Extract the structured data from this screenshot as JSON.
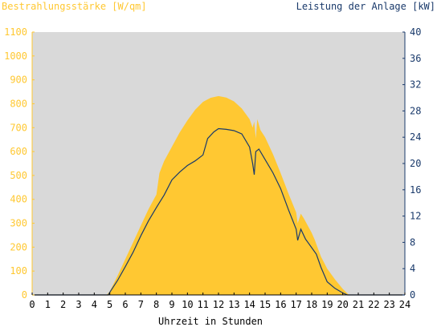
{
  "chart_data": {
    "type": "area",
    "title_left": "Bestrahlungsstärke [W/qm]",
    "title_right": "Leistung der Anlage [kW]",
    "xlabel": "Uhrzeit in Stunden",
    "xlim": [
      0,
      24
    ],
    "ylim_left": [
      0,
      1100
    ],
    "ylim_right": [
      0,
      40
    ],
    "x_ticks": [
      "0",
      "1",
      "2",
      "3",
      "4",
      "5",
      "6",
      "7",
      "8",
      "9",
      "10",
      "11",
      "12",
      "13",
      "14",
      "15",
      "16",
      "17",
      "18",
      "19",
      "20",
      "21",
      "22",
      "23",
      "24"
    ],
    "y_ticks_left": [
      "0",
      "100",
      "200",
      "300",
      "400",
      "500",
      "600",
      "700",
      "800",
      "900",
      "1000",
      "1100"
    ],
    "y_ticks_right": [
      "0",
      "4",
      "8",
      "12",
      "16",
      "20",
      "24",
      "28",
      "32",
      "36",
      "40"
    ],
    "colors": {
      "plot_background": "#d9d9d9",
      "irradiance": "#ffc832",
      "power": "#1a3a6b",
      "left_axis": "#ffc832",
      "right_axis": "#1a3a6b"
    },
    "series": [
      {
        "name": "Bestrahlungsstärke [W/qm]",
        "axis": "left",
        "x": [
          0,
          4.8,
          5,
          5.5,
          6,
          6.5,
          7,
          7.5,
          8,
          8.2,
          8.5,
          9,
          9.5,
          10,
          10.5,
          11,
          11.5,
          12,
          12.5,
          13,
          13.5,
          14,
          14.2,
          14.3,
          14.4,
          14.5,
          14.7,
          15,
          15.5,
          16,
          16.5,
          17,
          17.1,
          17.3,
          17.5,
          18,
          18.2,
          18.4,
          18.6,
          19,
          19.5,
          20,
          20.4,
          24
        ],
        "values": [
          0,
          0,
          15,
          80,
          150,
          220,
          290,
          360,
          420,
          510,
          560,
          620,
          680,
          730,
          775,
          808,
          825,
          832,
          826,
          810,
          780,
          735,
          700,
          725,
          655,
          735,
          690,
          660,
          590,
          510,
          425,
          345,
          300,
          340,
          320,
          260,
          230,
          195,
          160,
          110,
          65,
          25,
          0,
          0
        ]
      },
      {
        "name": "Leistung der Anlage [kW]",
        "axis": "right",
        "x": [
          0,
          4.9,
          5,
          5.5,
          6,
          6.5,
          7,
          7.5,
          8,
          8.5,
          9,
          9.5,
          10,
          10.5,
          11,
          11.3,
          11.7,
          12,
          12.5,
          13,
          13.5,
          14,
          14.2,
          14.3,
          14.4,
          14.6,
          15,
          15.5,
          16,
          16.5,
          17,
          17.1,
          17.3,
          17.6,
          18,
          18.3,
          18.6,
          19,
          19.5,
          20,
          20.3,
          24
        ],
        "values": [
          0,
          0,
          0.4,
          2.2,
          4.3,
          6.5,
          9.0,
          11.3,
          13.3,
          15.2,
          17.5,
          18.7,
          19.7,
          20.4,
          21.3,
          23.8,
          24.8,
          25.3,
          25.2,
          25.0,
          24.5,
          22.5,
          20.0,
          18.3,
          21.8,
          22.2,
          20.6,
          18.6,
          16.2,
          13.0,
          10.0,
          8.3,
          10.0,
          8.5,
          7.2,
          6.2,
          4.2,
          2.0,
          1.0,
          0.3,
          0,
          0
        ]
      }
    ]
  }
}
